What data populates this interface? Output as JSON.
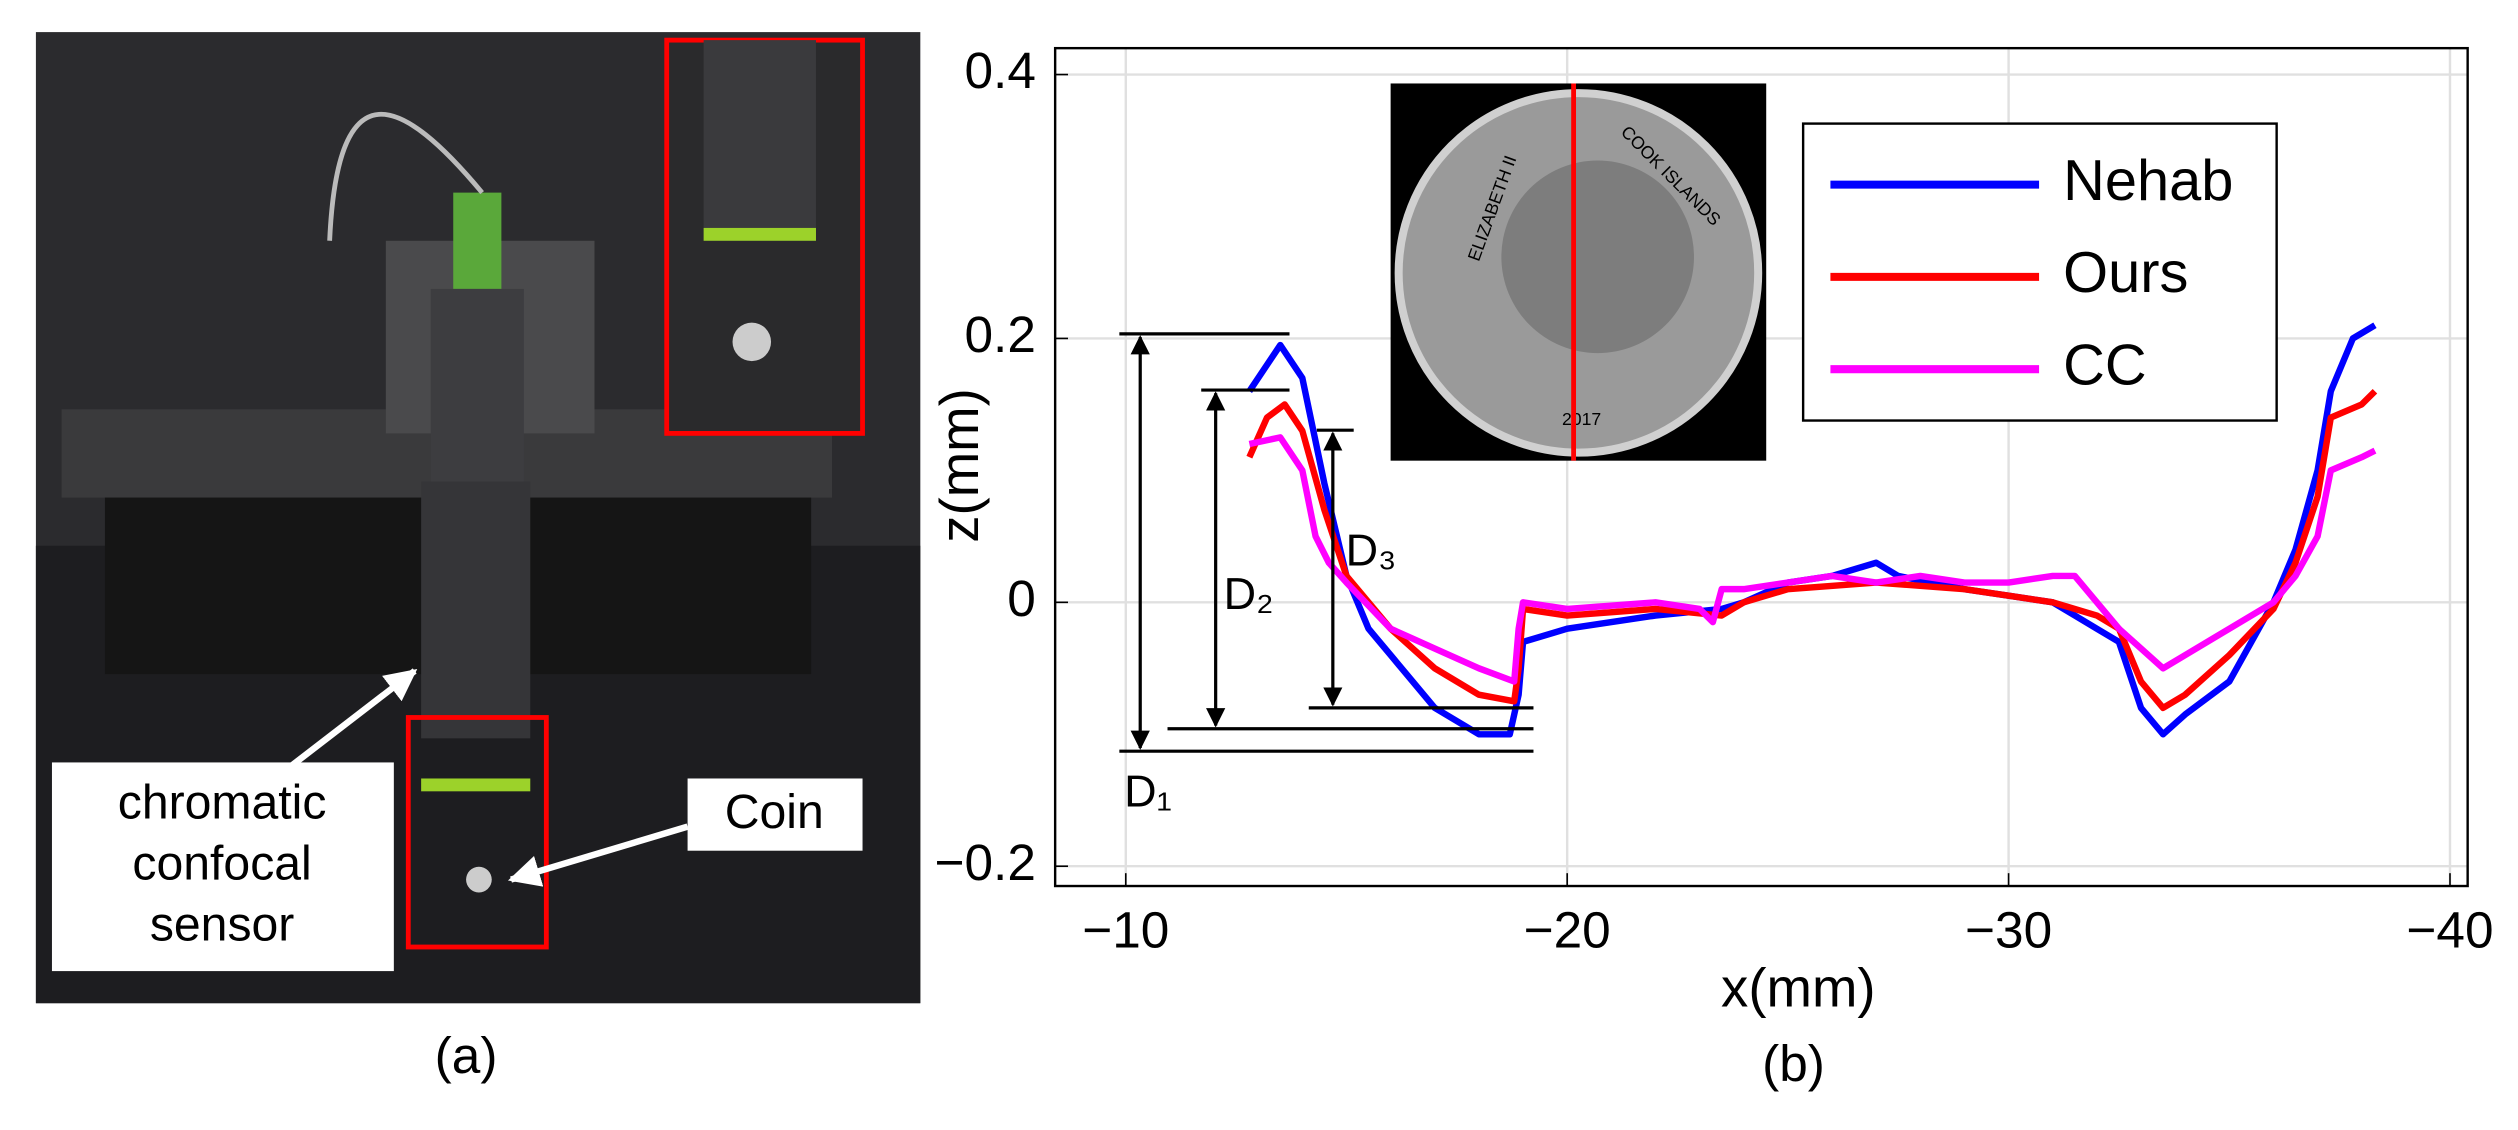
{
  "photo": {
    "sensor_label": [
      "chromatic",
      "confocal",
      "sensor"
    ],
    "coin_label": "Coin",
    "caption": "(a)"
  },
  "chart_data": {
    "type": "line",
    "caption": "(b)",
    "xlabel": "x(mm)",
    "ylabel": "z(mm)",
    "xlim": [
      -8.4,
      -40.4
    ],
    "xticks": [
      {
        "value": -10,
        "label": "−10"
      },
      {
        "value": -20,
        "label": "−20"
      },
      {
        "value": -30,
        "label": "−30"
      },
      {
        "value": -40,
        "label": "−40"
      }
    ],
    "ylim": [
      -0.215,
      0.42
    ],
    "yticks": [
      {
        "value": -0.2,
        "label": "−0.2"
      },
      0,
      0.2,
      0.4
    ],
    "grid": true,
    "legend": "upper right",
    "annotations": [
      "D₁",
      "D₂",
      "D₃"
    ],
    "inset_texts": [
      "ELIZABETH II",
      "COOK ISLANDS",
      "2017"
    ],
    "series": [
      {
        "name": "Nehab",
        "color": "#0000ff",
        "x": [
          -12.8,
          -13.5,
          -14,
          -14.5,
          -15,
          -15.5,
          -16,
          -17,
          -18,
          -18.7,
          -18.9,
          -19,
          -20,
          -22,
          -23.5,
          -24,
          -25,
          -26,
          -27,
          -27.5,
          -29,
          -30,
          -31,
          -31.5,
          -32,
          -32.5,
          -33,
          -33.5,
          -34,
          -35,
          -35.5,
          -36,
          -36.5,
          -37,
          -37.3,
          -37.8,
          -38.3
        ],
        "values": [
          0.16,
          0.195,
          0.17,
          0.09,
          0.02,
          -0.02,
          -0.04,
          -0.08,
          -0.1,
          -0.1,
          -0.07,
          -0.03,
          -0.02,
          -0.01,
          -0.005,
          0.0,
          0.015,
          0.02,
          0.03,
          0.02,
          0.01,
          0.005,
          0.0,
          -0.01,
          -0.02,
          -0.03,
          -0.08,
          -0.1,
          -0.085,
          -0.06,
          -0.03,
          0.0,
          0.04,
          0.1,
          0.16,
          0.2,
          0.21
        ]
      },
      {
        "name": "Ours",
        "color": "#ff0000",
        "x": [
          -12.8,
          -13.2,
          -13.6,
          -14,
          -14.5,
          -15,
          -15.5,
          -16,
          -17,
          -18,
          -18.8,
          -18.9,
          -19,
          -20,
          -22,
          -23.5,
          -24,
          -25,
          -27,
          -29,
          -30,
          -31,
          -32,
          -32.5,
          -33,
          -33.5,
          -34,
          -35,
          -36,
          -36.5,
          -37,
          -37.3,
          -38,
          -38.3
        ],
        "values": [
          0.11,
          0.14,
          0.15,
          0.13,
          0.07,
          0.02,
          0.0,
          -0.02,
          -0.05,
          -0.07,
          -0.075,
          -0.05,
          -0.005,
          -0.01,
          -0.005,
          -0.01,
          0.0,
          0.01,
          0.015,
          0.01,
          0.005,
          0.0,
          -0.01,
          -0.02,
          -0.06,
          -0.08,
          -0.07,
          -0.04,
          -0.005,
          0.03,
          0.08,
          0.14,
          0.15,
          0.16
        ]
      },
      {
        "name": "CC",
        "color": "#ff00ff",
        "x": [
          -12.8,
          -13.5,
          -14,
          -14.3,
          -14.6,
          -15,
          -16,
          -17,
          -18,
          -18.8,
          -18.9,
          -19,
          -20,
          -22,
          -23,
          -23.3,
          -23.5,
          -24,
          -25,
          -26,
          -27,
          -28,
          -29,
          -30,
          -31,
          -31.5,
          -32,
          -32.5,
          -33,
          -33.5,
          -34,
          -35,
          -36,
          -36.5,
          -37,
          -37.3,
          -38,
          -38.3
        ],
        "values": [
          0.12,
          0.125,
          0.1,
          0.05,
          0.03,
          0.015,
          -0.02,
          -0.035,
          -0.05,
          -0.06,
          -0.02,
          0.0,
          -0.005,
          0.0,
          -0.005,
          -0.015,
          0.01,
          0.01,
          0.015,
          0.02,
          0.015,
          0.02,
          0.015,
          0.015,
          0.02,
          0.02,
          0.0,
          -0.02,
          -0.035,
          -0.05,
          -0.04,
          -0.02,
          0.0,
          0.02,
          0.05,
          0.1,
          0.11,
          0.115
        ]
      }
    ]
  }
}
